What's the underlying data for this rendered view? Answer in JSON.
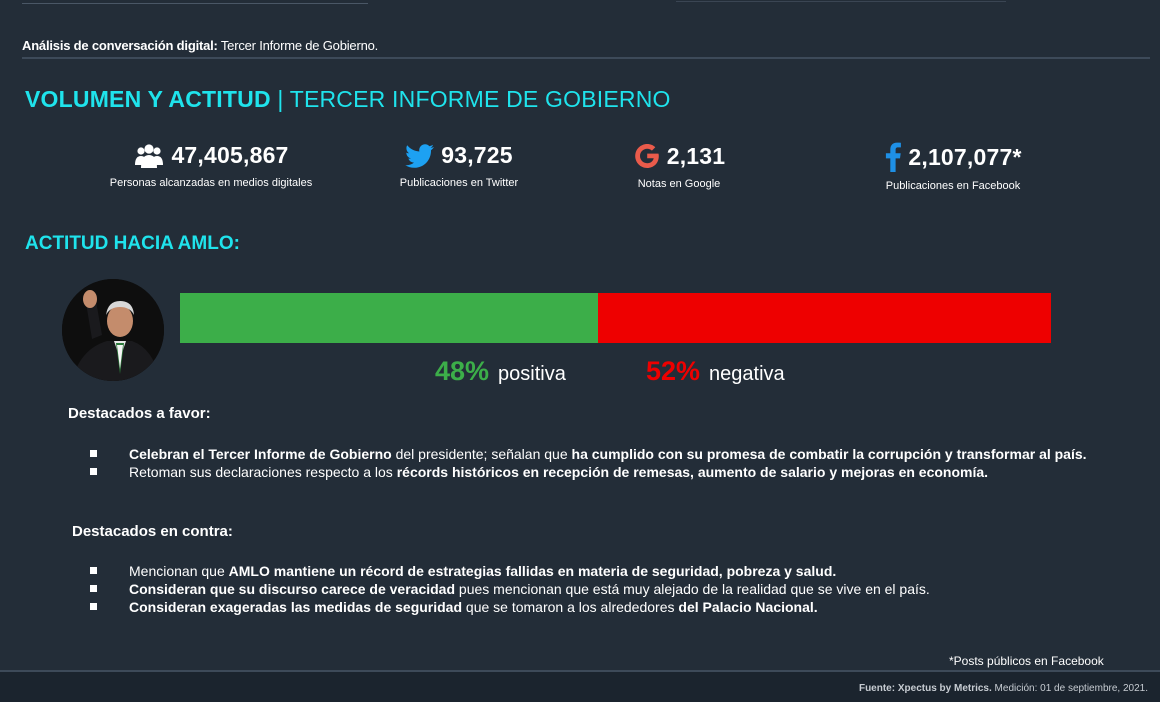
{
  "header": {
    "subtitle_bold": "Análisis de conversación digital:",
    "subtitle_rest": " Tercer Informe de Gobierno."
  },
  "title": {
    "strong": "VOLUMEN Y ACTITUD",
    "rest": " | TERCER INFORME DE GOBIERNO"
  },
  "stats": [
    {
      "icon": "people-icon",
      "value": "47,405,867",
      "label": "Personas alcanzadas en medios digitales"
    },
    {
      "icon": "twitter-icon",
      "value": "93,725",
      "label": "Publicaciones en Twitter"
    },
    {
      "icon": "google-icon",
      "value": "2,131",
      "label": "Notas en Google"
    },
    {
      "icon": "facebook-icon",
      "value": "2,107,077*",
      "label": "Publicaciones en Facebook"
    }
  ],
  "attitude": {
    "title": "ACTITUD HACIA AMLO:",
    "positive_fraction": 0.48,
    "positive_value": "48%",
    "positive_label": "positiva",
    "negative_value": "52%",
    "negative_label": "negativa",
    "colors": {
      "positive": "#3cae49",
      "negative": "#ee0000"
    }
  },
  "favor": {
    "title": "Destacados a favor:",
    "items": [
      [
        {
          "t": "Celebran el Tercer Informe de Gobierno",
          "b": true
        },
        {
          "t": " del presidente; señalan que ",
          "b": false
        },
        {
          "t": "ha cumplido con su promesa de combatir la corrupción y transformar al país.",
          "b": true
        }
      ],
      [
        {
          "t": "Retoman sus declaraciones respecto a los ",
          "b": false
        },
        {
          "t": "récords históricos en recepción de remesas, aumento de salario y mejoras en economía.",
          "b": true
        }
      ]
    ]
  },
  "contra": {
    "title": "Destacados en contra:",
    "items": [
      [
        {
          "t": "Mencionan que ",
          "b": false
        },
        {
          "t": "AMLO mantiene un récord de estrategias fallidas en materia de seguridad, pobreza y salud.",
          "b": true
        }
      ],
      [
        {
          "t": "Consideran que su discurso carece de veracidad",
          "b": true
        },
        {
          "t": " pues mencionan que está muy alejado de la realidad que se vive en el país.",
          "b": false
        }
      ],
      [
        {
          "t": "Consideran exageradas las medidas de seguridad",
          "b": true
        },
        {
          "t": " que se tomaron a los alrededores ",
          "b": false
        },
        {
          "t": "del Palacio Nacional.",
          "b": true
        }
      ]
    ]
  },
  "footnote": "*Posts públicos en Facebook",
  "source": {
    "bold": "Fuente: Xpectus by Metrics.",
    "rest": " Medición: 01 de septiembre, 2021."
  }
}
